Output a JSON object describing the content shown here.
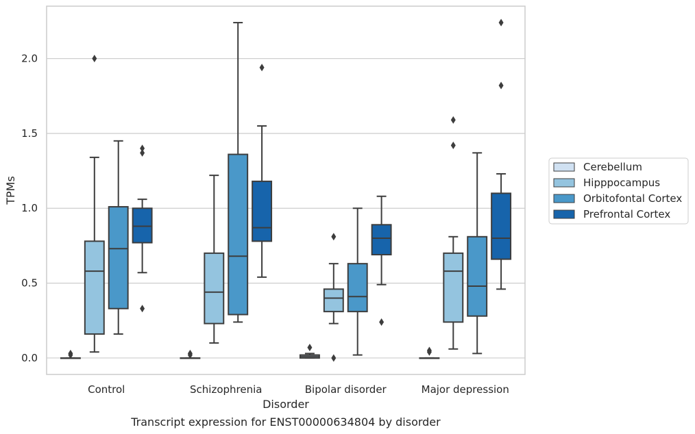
{
  "chart_data": {
    "type": "boxplot",
    "caption": "Transcript expression for ENST00000634804 by disorder",
    "xlabel": "Disorder",
    "ylabel": "TPMs",
    "ylim": [
      -0.11,
      2.35
    ],
    "yticks": [
      0.0,
      0.5,
      1.0,
      1.5,
      2.0
    ],
    "ytick_labels": [
      "0.0",
      "0.5",
      "1.0",
      "1.5",
      "2.0"
    ],
    "grid": "horizontal",
    "legend_position": "right",
    "categories": [
      "Control",
      "Schizophrenia",
      "Bipolar disorder",
      "Major depression"
    ],
    "series": [
      {
        "name": "Cerebellum",
        "color": "#d0e1f2",
        "boxes": [
          {
            "q1": 0.0,
            "median": 0.0,
            "q3": 0.0,
            "whislo": 0.0,
            "whishi": 0.0,
            "fliers": [
              0.02,
              0.03
            ]
          },
          {
            "q1": 0.0,
            "median": 0.0,
            "q3": 0.0,
            "whislo": 0.0,
            "whishi": 0.0,
            "fliers": [
              0.02,
              0.03
            ]
          },
          {
            "q1": 0.0,
            "median": 0.01,
            "q3": 0.02,
            "whislo": 0.0,
            "whishi": 0.03,
            "fliers": [
              0.07
            ]
          },
          {
            "q1": 0.0,
            "median": 0.0,
            "q3": 0.0,
            "whislo": 0.0,
            "whishi": 0.0,
            "fliers": [
              0.04,
              0.05
            ]
          }
        ]
      },
      {
        "name": "Hipppocampus",
        "color": "#94c4df",
        "boxes": [
          {
            "q1": 0.16,
            "median": 0.58,
            "q3": 0.78,
            "whislo": 0.04,
            "whishi": 1.34,
            "fliers": [
              2.0
            ]
          },
          {
            "q1": 0.23,
            "median": 0.44,
            "q3": 0.7,
            "whislo": 0.1,
            "whishi": 1.22,
            "fliers": []
          },
          {
            "q1": 0.31,
            "median": 0.4,
            "q3": 0.46,
            "whislo": 0.23,
            "whishi": 0.63,
            "fliers": [
              0.0,
              0.81
            ]
          },
          {
            "q1": 0.24,
            "median": 0.58,
            "q3": 0.7,
            "whislo": 0.06,
            "whishi": 0.81,
            "fliers": [
              1.42,
              1.59
            ]
          }
        ]
      },
      {
        "name": "Orbitofontal Cortex",
        "color": "#4a98c9",
        "boxes": [
          {
            "q1": 0.33,
            "median": 0.73,
            "q3": 1.01,
            "whislo": 0.16,
            "whishi": 1.45,
            "fliers": []
          },
          {
            "q1": 0.29,
            "median": 0.68,
            "q3": 1.36,
            "whislo": 0.24,
            "whishi": 2.24,
            "fliers": []
          },
          {
            "q1": 0.31,
            "median": 0.41,
            "q3": 0.63,
            "whislo": 0.02,
            "whishi": 1.0,
            "fliers": []
          },
          {
            "q1": 0.28,
            "median": 0.48,
            "q3": 0.81,
            "whislo": 0.03,
            "whishi": 1.37,
            "fliers": []
          }
        ]
      },
      {
        "name": "Prefrontal Cortex",
        "color": "#1764ab",
        "boxes": [
          {
            "q1": 0.77,
            "median": 0.88,
            "q3": 1.0,
            "whislo": 0.57,
            "whishi": 1.06,
            "fliers": [
              0.33,
              1.37,
              1.4
            ]
          },
          {
            "q1": 0.78,
            "median": 0.87,
            "q3": 1.18,
            "whislo": 0.54,
            "whishi": 1.55,
            "fliers": [
              1.94
            ]
          },
          {
            "q1": 0.69,
            "median": 0.8,
            "q3": 0.89,
            "whislo": 0.49,
            "whishi": 1.08,
            "fliers": [
              0.24
            ]
          },
          {
            "q1": 0.66,
            "median": 0.8,
            "q3": 1.1,
            "whislo": 0.46,
            "whishi": 1.23,
            "fliers": [
              1.82,
              2.24
            ]
          }
        ]
      }
    ]
  }
}
